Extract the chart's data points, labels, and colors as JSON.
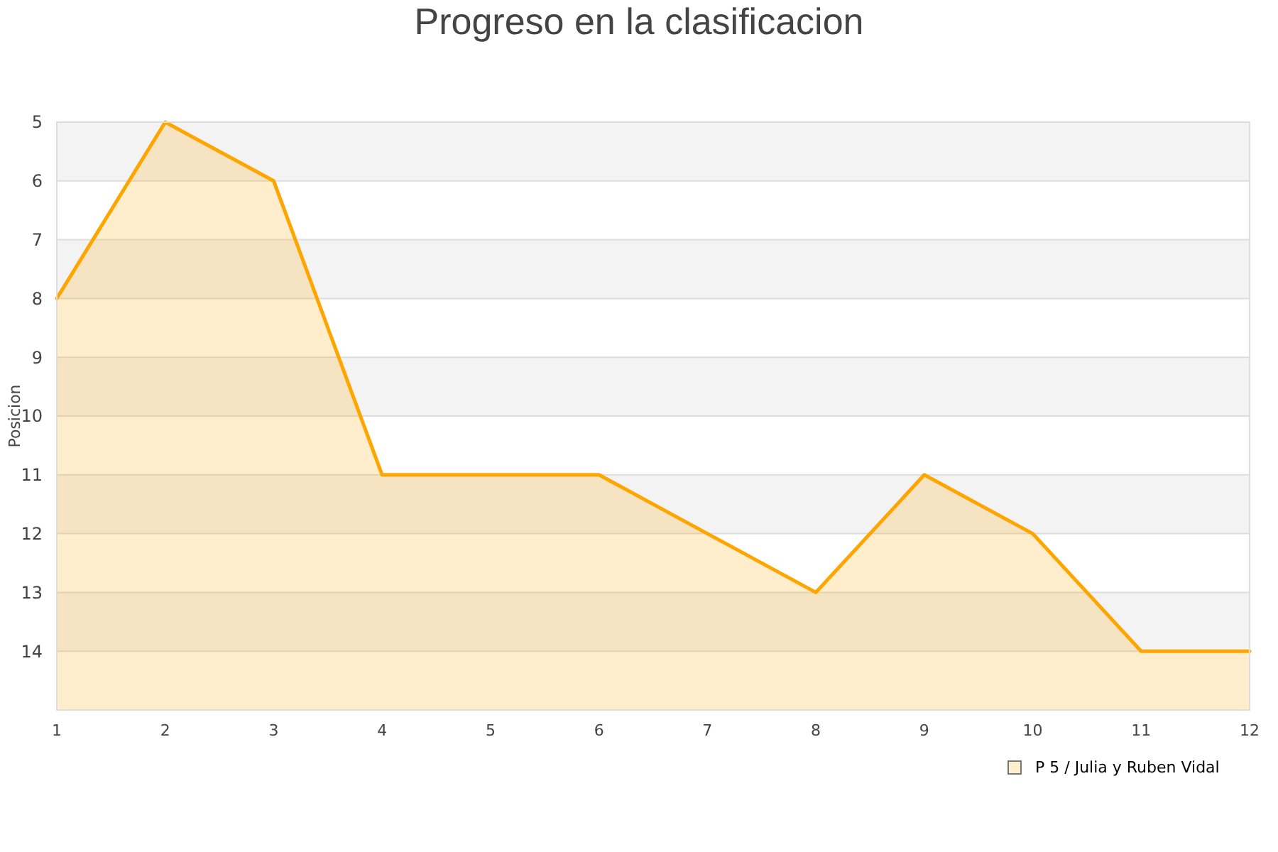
{
  "chart_data": {
    "type": "line",
    "title": "Progreso en la clasificacion",
    "ylabel": "Posicion",
    "x": [
      1,
      2,
      3,
      4,
      5,
      6,
      7,
      8,
      9,
      10,
      11,
      12
    ],
    "series": [
      {
        "name": "P 5 / Julia y Ruben Vidal",
        "color": "#ffa500",
        "values": [
          8,
          5,
          6,
          11,
          11,
          11,
          12,
          13,
          11,
          12,
          14,
          14
        ],
        "lower": [
          8,
          5,
          6,
          11,
          11,
          11,
          12,
          13,
          11,
          12,
          14,
          14
        ],
        "upper": [
          15,
          15,
          15,
          15,
          15,
          15,
          15,
          15,
          15,
          15,
          15,
          15
        ]
      }
    ],
    "xlim": [
      1,
      12
    ],
    "xticks": [
      1,
      2,
      3,
      4,
      5,
      6,
      7,
      8,
      9,
      10,
      11,
      12
    ],
    "ylim": [
      15,
      5
    ],
    "yticks": [
      5,
      6,
      7,
      8,
      9,
      10,
      11,
      12,
      13,
      14
    ],
    "grid": "y",
    "legend": "bottom right",
    "marker": "none",
    "line_style": "solid"
  }
}
